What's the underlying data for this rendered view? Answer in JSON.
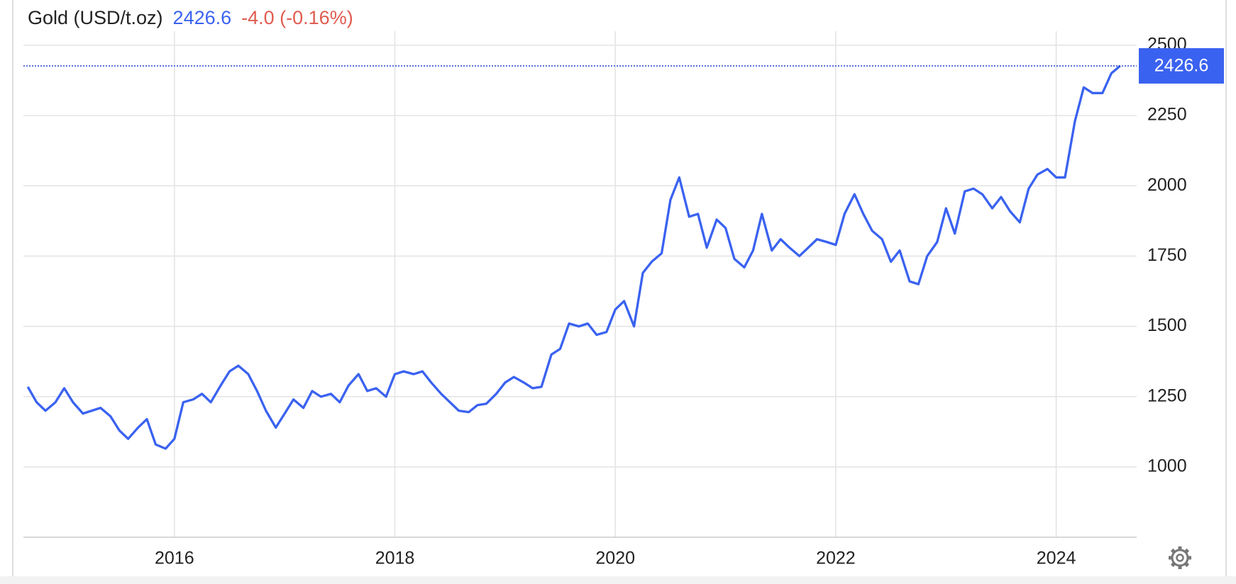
{
  "chart_data": {
    "type": "line",
    "title": "Gold (USD/t.oz)",
    "change": "-4.0 (-0.16%)",
    "color": "#3a62f0",
    "change_color": "#e05b4f",
    "grid": true,
    "xlim": [
      2014.63,
      2024.73
    ],
    "xticks": [
      2016,
      2018,
      2020,
      2022,
      2024
    ],
    "ylim": [
      750,
      2550
    ],
    "yticks": [
      1000,
      1250,
      1500,
      1750,
      2000,
      2250,
      2500
    ],
    "x": [
      2014.67,
      2014.75,
      2014.83,
      2014.92,
      2015.0,
      2015.08,
      2015.17,
      2015.25,
      2015.33,
      2015.42,
      2015.5,
      2015.58,
      2015.67,
      2015.75,
      2015.83,
      2015.92,
      2016.0,
      2016.08,
      2016.17,
      2016.25,
      2016.33,
      2016.42,
      2016.5,
      2016.58,
      2016.67,
      2016.75,
      2016.83,
      2016.92,
      2017.0,
      2017.08,
      2017.17,
      2017.25,
      2017.33,
      2017.42,
      2017.5,
      2017.58,
      2017.67,
      2017.75,
      2017.83,
      2017.92,
      2018.0,
      2018.08,
      2018.17,
      2018.25,
      2018.33,
      2018.42,
      2018.5,
      2018.58,
      2018.67,
      2018.75,
      2018.83,
      2018.92,
      2019.0,
      2019.08,
      2019.17,
      2019.25,
      2019.33,
      2019.42,
      2019.5,
      2019.58,
      2019.67,
      2019.75,
      2019.83,
      2019.92,
      2020.0,
      2020.08,
      2020.17,
      2020.25,
      2020.33,
      2020.42,
      2020.5,
      2020.58,
      2020.67,
      2020.75,
      2020.83,
      2020.92,
      2021.0,
      2021.08,
      2021.17,
      2021.25,
      2021.33,
      2021.42,
      2021.5,
      2021.58,
      2021.67,
      2021.75,
      2021.83,
      2021.92,
      2022.0,
      2022.08,
      2022.17,
      2022.25,
      2022.33,
      2022.42,
      2022.5,
      2022.58,
      2022.67,
      2022.75,
      2022.83,
      2022.92,
      2023.0,
      2023.08,
      2023.17,
      2023.25,
      2023.33,
      2023.42,
      2023.5,
      2023.58,
      2023.67,
      2023.75,
      2023.83,
      2023.92,
      2024.0,
      2024.08,
      2024.17,
      2024.25,
      2024.33,
      2024.42,
      2024.5,
      2024.58
    ],
    "values": [
      1285,
      1230,
      1200,
      1230,
      1280,
      1230,
      1190,
      1200,
      1210,
      1180,
      1130,
      1100,
      1140,
      1170,
      1080,
      1065,
      1100,
      1230,
      1240,
      1260,
      1230,
      1290,
      1340,
      1360,
      1330,
      1270,
      1200,
      1140,
      1190,
      1240,
      1210,
      1270,
      1250,
      1260,
      1230,
      1290,
      1330,
      1270,
      1280,
      1250,
      1330,
      1340,
      1330,
      1340,
      1300,
      1260,
      1230,
      1200,
      1195,
      1220,
      1225,
      1260,
      1300,
      1320,
      1300,
      1280,
      1285,
      1400,
      1420,
      1510,
      1500,
      1510,
      1470,
      1480,
      1560,
      1590,
      1500,
      1690,
      1730,
      1760,
      1950,
      2030,
      1890,
      1900,
      1780,
      1880,
      1850,
      1740,
      1710,
      1770,
      1900,
      1770,
      1810,
      1780,
      1750,
      1780,
      1810,
      1800,
      1790,
      1900,
      1970,
      1900,
      1840,
      1810,
      1730,
      1770,
      1660,
      1650,
      1750,
      1800,
      1920,
      1830,
      1980,
      1990,
      1970,
      1920,
      1960,
      1910,
      1870,
      1990,
      2040,
      2060,
      2030,
      2030,
      2230,
      2350,
      2330,
      2330,
      2400,
      2426.6
    ]
  }
}
